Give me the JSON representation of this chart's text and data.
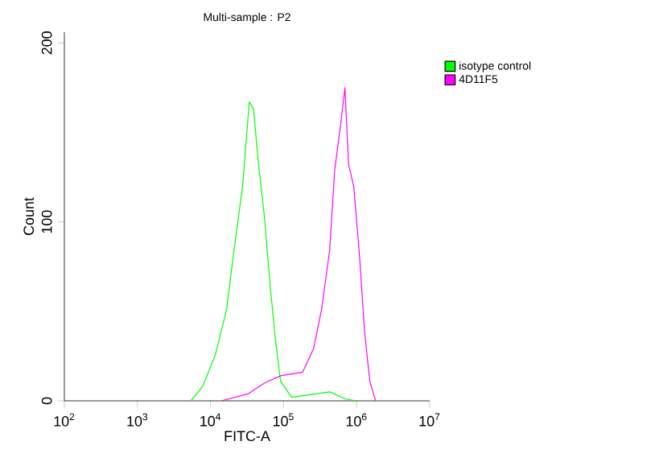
{
  "chart_data": {
    "type": "line",
    "title": "Multi-sample : P2",
    "xlabel": "FITC-A",
    "ylabel": "Count",
    "log": "x",
    "xlim": [
      100,
      10000000
    ],
    "xticks": [
      {
        "value": 100,
        "label": "10$^{2}$"
      },
      {
        "value": 1000,
        "label": "10$^{3}$"
      },
      {
        "value": 10000,
        "label": "10$^{4}$"
      },
      {
        "value": 100000,
        "label": "10$^{5}$"
      },
      {
        "value": 1000000,
        "label": "10$^{6}$"
      },
      {
        "value": 10000000,
        "label": "10$^{7}$"
      }
    ],
    "ylim": [
      0,
      206
    ],
    "yticks": [
      0,
      100,
      200
    ],
    "legend": "top right",
    "grid": false,
    "marker": "none",
    "line_style": "solid",
    "series": [
      {
        "name": "isotype control",
        "color": "#00ff00",
        "x": [
          5400,
          7800,
          11700,
          16600,
          21400,
          27500,
          33900,
          38900,
          44700,
          55000,
          66000,
          78000,
          91000,
          129000,
          427000,
          708000,
          1000000
        ],
        "values": [
          0,
          8,
          26,
          51,
          87,
          120,
          167,
          163,
          135,
          102,
          63,
          33,
          11,
          2,
          5,
          1,
          0
        ]
      },
      {
        "name": "4D11F5",
        "color": "#ff00ff",
        "x": [
          14100,
          33100,
          55000,
          91000,
          182000,
          257000,
          331000,
          427000,
          501000,
          603000,
          692000,
          776000,
          912000,
          1096000,
          1288000,
          1514000,
          1820000
        ],
        "values": [
          0,
          4,
          10,
          14,
          16,
          29,
          51,
          84,
          129,
          154,
          175,
          132,
          120,
          81,
          38,
          11,
          0
        ]
      }
    ]
  }
}
